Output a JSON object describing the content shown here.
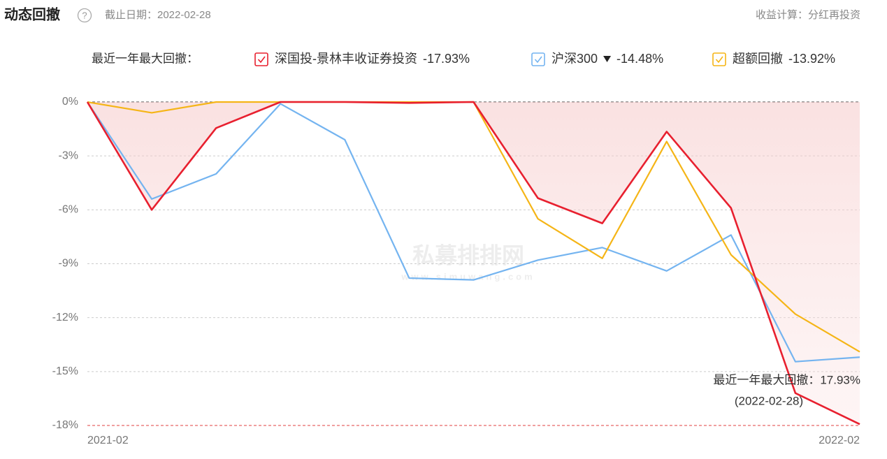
{
  "header": {
    "title": "动态回撤",
    "help": "?",
    "date_label": "截止日期：2022-02-28",
    "calc_label": "收益计算：分红再投资"
  },
  "chart_data": {
    "type": "line",
    "legend_title": "最近一年最大回撤：",
    "categories": [
      "2021-02",
      null,
      null,
      null,
      null,
      null,
      null,
      null,
      null,
      null,
      null,
      null,
      "2022-02"
    ],
    "series": [
      {
        "name": "深国投-景林丰收证券投资",
        "legend_value": "-17.93%",
        "color": "#e8202f",
        "area": true,
        "values": [
          0,
          -6.0,
          -1.45,
          0,
          0,
          -0.05,
          0,
          -5.35,
          -6.75,
          -1.65,
          -5.9,
          -16.2,
          -17.93
        ]
      },
      {
        "name": "沪深300",
        "legend_value": "-14.48%",
        "color": "#74b4f0",
        "dropdown": true,
        "values": [
          0,
          -5.4,
          -4.0,
          -0.1,
          -2.1,
          -9.8,
          -9.9,
          -8.8,
          -8.1,
          -9.4,
          -7.4,
          -14.45,
          -14.2
        ]
      },
      {
        "name": "超额回撤",
        "legend_value": "-13.92%",
        "color": "#f5b517",
        "values": [
          0,
          -0.6,
          0,
          0,
          0,
          0,
          0,
          -6.5,
          -8.7,
          -2.2,
          -8.5,
          -11.8,
          -13.9
        ]
      }
    ],
    "ylim": [
      -18,
      0
    ],
    "yticks": [
      {
        "value": 0,
        "label": "0%"
      },
      {
        "value": -3,
        "label": "-3%"
      },
      {
        "value": -6,
        "label": "-6%"
      },
      {
        "value": -9,
        "label": "-9%"
      },
      {
        "value": -12,
        "label": "-12%"
      },
      {
        "value": -15,
        "label": "-15%"
      },
      {
        "value": -18,
        "label": "-18%"
      }
    ],
    "grid": true,
    "annotation": [
      "最近一年最大回撤：17.93%",
      "(2022-02-28)"
    ],
    "watermark": {
      "title": "私募排排网",
      "url": "www.simuwang.com"
    }
  }
}
